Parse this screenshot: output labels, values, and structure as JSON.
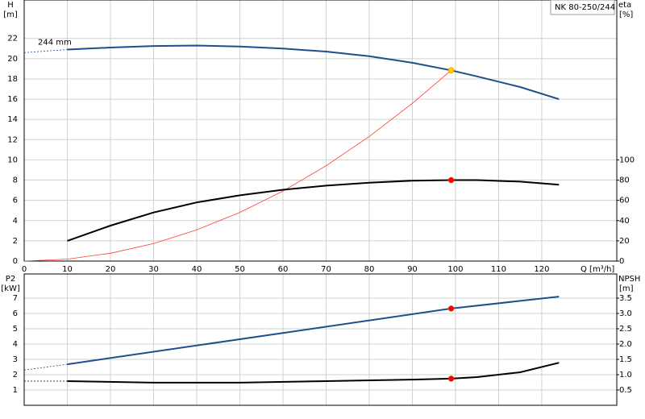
{
  "chart_data": [
    {
      "type": "line",
      "legend_box": "NK 80-250/244",
      "annotation": "244 mm",
      "y_label": "H",
      "y_unit": "[m]",
      "y2_label": "eta",
      "y2_unit": "[%]",
      "x_label": "Q [m³/h]",
      "xlim": [
        0,
        137.4
      ],
      "xticks": [
        0,
        10,
        20,
        30,
        40,
        50,
        60,
        70,
        80,
        90,
        100,
        110,
        120
      ],
      "ylim": [
        0,
        25.8
      ],
      "yticks": [
        0,
        2,
        4,
        6,
        8,
        10,
        12,
        14,
        16,
        18,
        20,
        22
      ],
      "y2lim": [
        0,
        258
      ],
      "y2ticks": [
        0,
        20,
        40,
        60,
        80,
        100
      ],
      "grid": true,
      "series": [
        {
          "color": "#1f4e8c",
          "dashed": true,
          "x": [
            0,
            10
          ],
          "values": [
            20.6,
            20.9
          ]
        },
        {
          "color": "#1f4e8c",
          "x": [
            10,
            20,
            30,
            40,
            50,
            60,
            70,
            80,
            90,
            99,
            105,
            115,
            124
          ],
          "values": [
            20.9,
            21.1,
            21.25,
            21.3,
            21.2,
            21.0,
            20.7,
            20.25,
            19.6,
            18.85,
            18.25,
            17.2,
            16.0
          ]
        },
        {
          "color": "#ff3b30",
          "thin": true,
          "x": [
            0,
            10,
            20,
            30,
            40,
            50,
            60,
            70,
            80,
            90,
            99
          ],
          "values": [
            0,
            0.19,
            0.77,
            1.73,
            3.08,
            4.81,
            6.92,
            9.42,
            12.31,
            15.58,
            18.85
          ]
        },
        {
          "color": "#000000",
          "axis": "y2",
          "x": [
            10,
            20,
            30,
            40,
            50,
            60,
            70,
            80,
            90,
            99,
            105,
            115,
            124
          ],
          "values": [
            20,
            35,
            48,
            58,
            65,
            70.5,
            74.5,
            77.5,
            79.5,
            80,
            80,
            78.5,
            75.5
          ]
        },
        {
          "color": "#ffd000",
          "marker": true,
          "x": [
            99
          ],
          "values": [
            18.85
          ]
        },
        {
          "color": "#ff0000",
          "marker": true,
          "axis": "y2",
          "x": [
            99
          ],
          "values": [
            80
          ]
        }
      ]
    },
    {
      "type": "line",
      "y_label": "P2",
      "y_unit": "[kW]",
      "y2_label": "NPSH",
      "y2_unit": "[m]",
      "xlim": [
        0,
        137.4
      ],
      "ylim": [
        0,
        8.58
      ],
      "yticks": [
        1,
        2,
        3,
        4,
        5,
        6,
        7
      ],
      "y2lim": [
        0,
        4.29
      ],
      "y2ticks": [
        {
          "value": 0.5,
          "label": "0.5"
        },
        {
          "value": 1,
          "label": "1.0"
        },
        {
          "value": 1.5,
          "label": "1.5"
        },
        {
          "value": 2,
          "label": "2.0"
        },
        {
          "value": 2.5,
          "label": "2.5"
        },
        {
          "value": 3,
          "label": "3.0"
        },
        {
          "value": 3.5,
          "label": "3.5"
        }
      ],
      "grid": true,
      "series": [
        {
          "color": "#1f4e8c",
          "dashed": true,
          "x": [
            0,
            10
          ],
          "values": [
            2.3,
            2.68
          ]
        },
        {
          "color": "#1f4e8c",
          "x": [
            10,
            99,
            124
          ],
          "values": [
            2.68,
            6.32,
            7.1
          ]
        },
        {
          "color": "#000000",
          "dashed": true,
          "axis": "y2",
          "x": [
            0,
            10
          ],
          "values": [
            0.79,
            0.79
          ]
        },
        {
          "color": "#000000",
          "axis": "y2",
          "x": [
            10,
            30,
            50,
            70,
            90,
            99,
            105,
            115,
            124
          ],
          "values": [
            0.79,
            0.74,
            0.74,
            0.79,
            0.84,
            0.87,
            0.92,
            1.08,
            1.39
          ]
        },
        {
          "color": "#ff0000",
          "marker": true,
          "x": [
            99
          ],
          "values": [
            6.32
          ]
        },
        {
          "color": "#ff0000",
          "marker": true,
          "axis": "y2",
          "x": [
            99
          ],
          "values": [
            0.87
          ]
        }
      ]
    }
  ]
}
